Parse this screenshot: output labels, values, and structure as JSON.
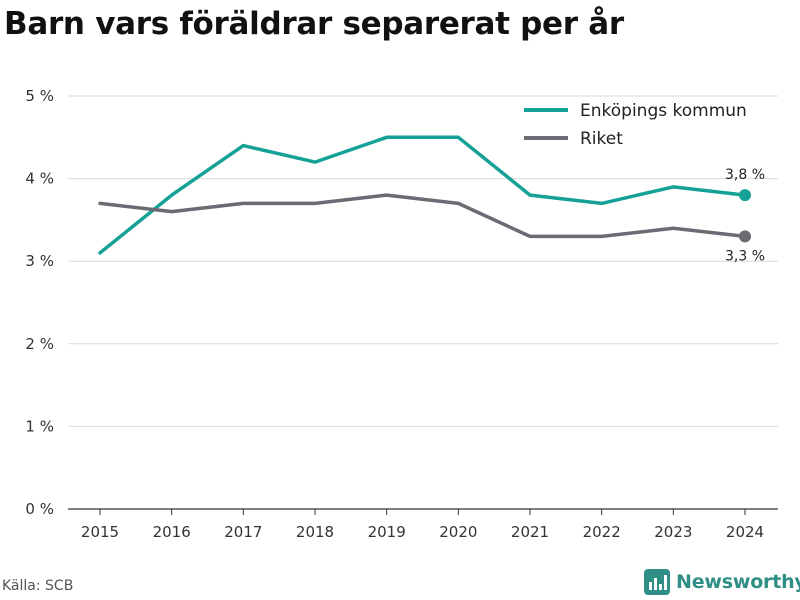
{
  "title": "Barn vars föräldrar separerat per år",
  "source": "Källa: SCB",
  "brand": {
    "name": "Newsworthy",
    "icon": "newsworthy-logo-icon"
  },
  "colors": {
    "enkoping": "#16a196",
    "riket": "#6b6b73",
    "grid": "#d9d9d9",
    "axis": "#333333"
  },
  "chart_data": {
    "type": "line",
    "title": "Barn vars föräldrar separerat per år",
    "xlabel": "",
    "ylabel": "",
    "x": [
      "2015",
      "2016",
      "2017",
      "2018",
      "2019",
      "2020",
      "2021",
      "2022",
      "2023",
      "2024"
    ],
    "ylim": [
      0,
      5
    ],
    "yticks": [
      0,
      1,
      2,
      3,
      4,
      5
    ],
    "ytick_labels": [
      "0 %",
      "1 %",
      "2 %",
      "3 %",
      "4 %",
      "5 %"
    ],
    "grid": true,
    "legend": "top-right",
    "series": [
      {
        "name": "Enköpings kommun",
        "values": [
          3.1,
          3.8,
          4.4,
          4.2,
          4.5,
          4.5,
          3.8,
          3.7,
          3.9,
          3.8
        ],
        "end_label": "3,8 %"
      },
      {
        "name": "Riket",
        "values": [
          3.7,
          3.6,
          3.7,
          3.7,
          3.8,
          3.7,
          3.3,
          3.3,
          3.4,
          3.3
        ],
        "end_label": "3,3 %"
      }
    ]
  }
}
